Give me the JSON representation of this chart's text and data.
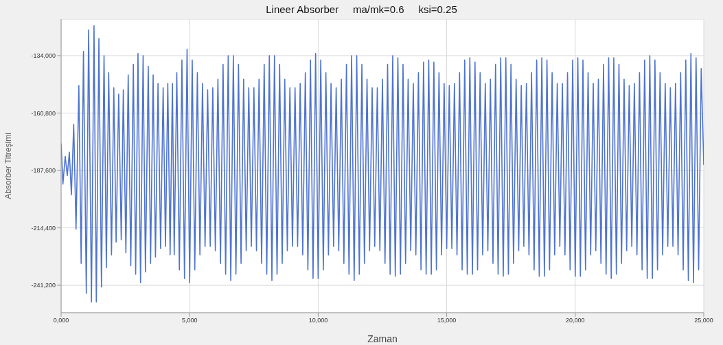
{
  "chart_data": {
    "type": "line",
    "title": "Lineer Absorber     ma/mk=0.6     ksi=0.25",
    "xlabel": "Zaman",
    "ylabel": "Absorber Titreşimi",
    "color": "#4f74d0",
    "grid": true,
    "xlim": [
      0,
      25000
    ],
    "ylim": [
      -254000,
      -117000
    ],
    "xticks": [
      {
        "value": 0,
        "label": "0,000"
      },
      {
        "value": 5000,
        "label": "5,000"
      },
      {
        "value": 10000,
        "label": "10,000"
      },
      {
        "value": 15000,
        "label": "15,000"
      },
      {
        "value": 20000,
        "label": "20,000"
      },
      {
        "value": 25000,
        "label": "25,000"
      }
    ],
    "yticks": [
      {
        "value": -134000,
        "label": "-134,000"
      },
      {
        "value": -160800,
        "label": "-160,800"
      },
      {
        "value": -187600,
        "label": "-187,600"
      },
      {
        "value": -214400,
        "label": "-214,400"
      },
      {
        "value": -241200,
        "label": "-241,200"
      }
    ],
    "x": [
      0,
      70,
      160,
      240,
      320,
      400,
      490,
      580,
      690,
      780,
      870,
      980,
      1070,
      1180,
      1280,
      1370,
      1470,
      1570,
      1670,
      1760,
      1850,
      1960,
      2050,
      2140,
      2240,
      2340,
      2420,
      2520,
      2610,
      2710,
      2810,
      2900,
      2990,
      3090,
      3190,
      3280,
      3390,
      3480,
      3580,
      3670,
      3770,
      3870,
      3970,
      4060,
      4150,
      4240,
      4330,
      4400,
      4500,
      4600,
      4700,
      4800,
      4900,
      5000,
      5100,
      5200,
      5300,
      5400,
      5500,
      5600,
      5700,
      5800,
      5900,
      6000,
      6100,
      6200,
      6300,
      6400,
      6500,
      6600,
      6700,
      6800,
      6900,
      7000,
      7100,
      7200,
      7300,
      7400,
      7500,
      7600,
      7700,
      7800,
      7900,
      8000,
      8100,
      8200,
      8300,
      8400,
      8500,
      8600,
      8700,
      8800,
      8900,
      9000,
      9100,
      9200,
      9300,
      9400,
      9500,
      9600,
      9700,
      9800,
      9900,
      10000,
      10100,
      10200,
      10300,
      10400,
      10500,
      10600,
      10700,
      10800,
      10900,
      11000,
      11100,
      11200,
      11300,
      11400,
      11500,
      11600,
      11700,
      11800,
      11900,
      12000,
      12100,
      12200,
      12300,
      12400,
      12500,
      12600,
      12700,
      12800,
      12900,
      13000,
      13100,
      13200,
      13300,
      13400,
      13500,
      13600,
      13700,
      13800,
      13900,
      14000,
      14100,
      14200,
      14300,
      14400,
      14500,
      14600,
      14700,
      14800,
      14900,
      15000,
      15100,
      15200,
      15300,
      15400,
      15500,
      15600,
      15700,
      15800,
      15900,
      16000,
      16100,
      16200,
      16300,
      16400,
      16500,
      16600,
      16700,
      16800,
      16900,
      17000,
      17100,
      17200,
      17300,
      17400,
      17500,
      17600,
      17700,
      17800,
      17900,
      18000,
      18100,
      18200,
      18300,
      18400,
      18500,
      18600,
      18700,
      18800,
      18900,
      19000,
      19100,
      19200,
      19300,
      19400,
      19500,
      19600,
      19700,
      19800,
      19900,
      20000,
      20100,
      20200,
      20300,
      20400,
      20500,
      20600,
      20700,
      20800,
      20900,
      21000,
      21100,
      21200,
      21300,
      21400,
      21500,
      21600,
      21700,
      21800,
      21900,
      22000,
      22100,
      22200,
      22300,
      22400,
      22500,
      22600,
      22700,
      22800,
      22900,
      23000,
      23100,
      23200,
      23300,
      23400,
      23500,
      23600,
      23700,
      23800,
      23900,
      24000,
      24100,
      24200,
      24300,
      24400,
      24500,
      24600,
      24700,
      24800,
      24900,
      25000
    ],
    "values": [
      -175000,
      -194000,
      -181000,
      -190000,
      -179000,
      -199000,
      -166000,
      -215000,
      -148000,
      -231000,
      -132000,
      -245000,
      -122000,
      -249000,
      -120000,
      -249000,
      -126000,
      -242000,
      -134000,
      -233000,
      -142000,
      -227000,
      -149000,
      -221000,
      -152000,
      -220000,
      -150000,
      -226000,
      -143000,
      -232000,
      -138000,
      -236000,
      -133000,
      -240000,
      -134000,
      -235000,
      -139000,
      -231000,
      -143000,
      -228000,
      -147000,
      -224000,
      -149000,
      -223000,
      -147000,
      -227000,
      -147000,
      -227000,
      -142000,
      -234000,
      -136000,
      -238000,
      -131000,
      -240000,
      -136000,
      -234000,
      -142000,
      -227000,
      -147000,
      -223000,
      -150000,
      -223000,
      -149000,
      -225000,
      -145000,
      -231000,
      -138000,
      -236000,
      -134000,
      -239000,
      -134000,
      -236000,
      -138000,
      -231000,
      -145000,
      -225000,
      -149000,
      -223000,
      -149000,
      -225000,
      -145000,
      -231000,
      -138000,
      -236000,
      -134000,
      -239000,
      -134000,
      -236000,
      -138000,
      -231000,
      -145000,
      -225000,
      -149000,
      -223000,
      -149000,
      -223000,
      -147000,
      -227000,
      -142000,
      -234000,
      -136000,
      -238000,
      -133000,
      -238000,
      -136000,
      -234000,
      -142000,
      -227000,
      -147000,
      -223000,
      -149000,
      -225000,
      -145000,
      -231000,
      -138000,
      -236000,
      -134000,
      -239000,
      -134000,
      -236000,
      -138000,
      -231000,
      -145000,
      -225000,
      -149000,
      -223000,
      -149000,
      -225000,
      -145000,
      -231000,
      -138000,
      -236000,
      -134000,
      -237000,
      -135000,
      -236000,
      -138000,
      -231000,
      -145000,
      -225000,
      -147000,
      -227000,
      -142000,
      -234000,
      -137000,
      -236000,
      -136000,
      -236000,
      -137000,
      -234000,
      -142000,
      -227000,
      -147000,
      -224000,
      -148000,
      -224000,
      -147000,
      -227000,
      -142000,
      -234000,
      -136000,
      -236000,
      -135000,
      -236000,
      -137000,
      -234000,
      -142000,
      -227000,
      -147000,
      -225000,
      -145000,
      -231000,
      -138000,
      -236000,
      -135000,
      -237000,
      -135000,
      -236000,
      -138000,
      -231000,
      -145000,
      -225000,
      -148000,
      -223000,
      -147000,
      -227000,
      -142000,
      -234000,
      -136000,
      -237000,
      -135000,
      -237000,
      -136000,
      -234000,
      -142000,
      -227000,
      -147000,
      -223000,
      -147000,
      -227000,
      -142000,
      -234000,
      -136000,
      -237000,
      -135000,
      -237000,
      -136000,
      -234000,
      -142000,
      -227000,
      -147000,
      -225000,
      -145000,
      -231000,
      -138000,
      -236000,
      -135000,
      -238000,
      -135000,
      -236000,
      -138000,
      -231000,
      -145000,
      -225000,
      -148000,
      -223000,
      -147000,
      -227000,
      -142000,
      -234000,
      -136000,
      -238000,
      -134000,
      -238000,
      -136000,
      -234000,
      -142000,
      -227000,
      -147000,
      -223000,
      -149000,
      -223000,
      -147000,
      -227000,
      -142000,
      -234000,
      -136000,
      -239000,
      -133000,
      -240000,
      -135000,
      -234000,
      -140000,
      -185000
    ]
  }
}
